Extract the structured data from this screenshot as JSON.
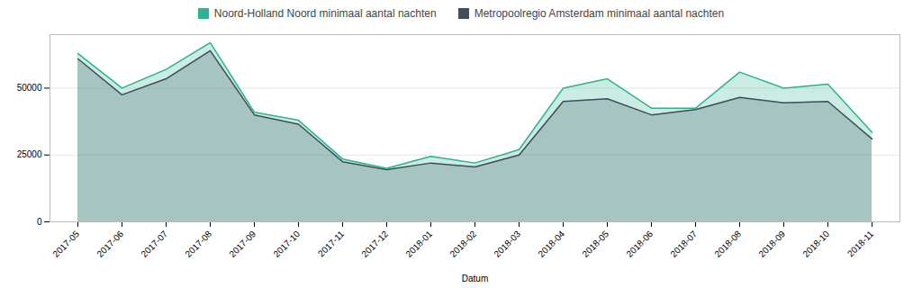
{
  "chart_data": {
    "type": "area",
    "xlabel": "Datum",
    "categories": [
      "2017-05",
      "2017-06",
      "2017-07",
      "2017-08",
      "2017-09",
      "2017-10",
      "2017-11",
      "2017-12",
      "2018-01",
      "2018-02",
      "2018-03",
      "2018-04",
      "2018-05",
      "2018-06",
      "2018-07",
      "2018-08",
      "2018-09",
      "2018-10",
      "2018-11"
    ],
    "series": [
      {
        "name": "Noord-Holland Noord minimaal aantal nachten",
        "color": "#2db391",
        "values": [
          63000,
          50000,
          57000,
          67000,
          41000,
          38000,
          23500,
          20000,
          24500,
          22000,
          27000,
          50000,
          53500,
          42500,
          42500,
          56000,
          50000,
          51500,
          33500
        ]
      },
      {
        "name": "Metropoolregio Amsterdam minimaal aantal nachten",
        "color": "#3d4f5c",
        "values": [
          61000,
          47500,
          53500,
          64000,
          40000,
          36500,
          22500,
          19500,
          22000,
          20500,
          25000,
          45000,
          46000,
          40000,
          42000,
          46500,
          44500,
          45000,
          31000
        ]
      }
    ],
    "ylim": [
      0,
      70000
    ],
    "yticks": [
      0,
      25000,
      50000
    ],
    "grid": true,
    "legend": "top"
  }
}
